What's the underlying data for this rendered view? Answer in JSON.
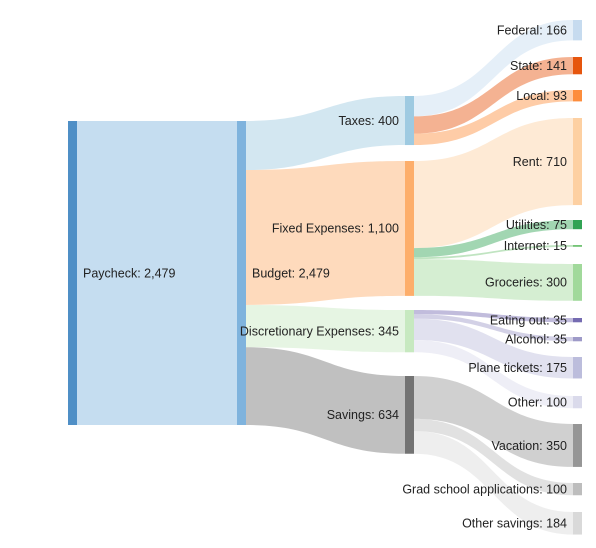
{
  "chart_data": {
    "type": "sankey",
    "nodes": [
      {
        "id": "paycheck",
        "name": "Paycheck",
        "value": 2479,
        "label": "Paycheck: 2,479",
        "color": "#4f8fc6"
      },
      {
        "id": "budget",
        "name": "Budget",
        "value": 2479,
        "label": "Budget: 2,479",
        "color": "#7fb3dd"
      },
      {
        "id": "taxes",
        "name": "Taxes",
        "value": 400,
        "label": "Taxes: 400",
        "color": "#9ecae1"
      },
      {
        "id": "fixed",
        "name": "Fixed Expenses",
        "value": 1100,
        "label": "Fixed Expenses: 1,100",
        "color": "#fdae6b"
      },
      {
        "id": "disc",
        "name": "Discretionary Expenses",
        "value": 345,
        "label": "Discretionary Expenses: 345",
        "color": "#c7e9c0"
      },
      {
        "id": "savings",
        "name": "Savings",
        "value": 634,
        "label": "Savings: 634",
        "color": "#737373"
      },
      {
        "id": "federal",
        "name": "Federal",
        "value": 166,
        "label": "Federal: 166",
        "color": "#c6dbef"
      },
      {
        "id": "state",
        "name": "State",
        "value": 141,
        "label": "State: 141",
        "color": "#e6550d"
      },
      {
        "id": "local",
        "name": "Local",
        "value": 93,
        "label": "Local: 93",
        "color": "#fd8d3c"
      },
      {
        "id": "rent",
        "name": "Rent",
        "value": 710,
        "label": "Rent: 710",
        "color": "#fdd0a2"
      },
      {
        "id": "utilities",
        "name": "Utilities",
        "value": 75,
        "label": "Utilities: 75",
        "color": "#31a354"
      },
      {
        "id": "internet",
        "name": "Internet",
        "value": 15,
        "label": "Internet: 15",
        "color": "#74c476"
      },
      {
        "id": "groceries",
        "name": "Groceries",
        "value": 300,
        "label": "Groceries: 300",
        "color": "#a1d99b"
      },
      {
        "id": "eatingout",
        "name": "Eating out",
        "value": 35,
        "label": "Eating out: 35",
        "color": "#756bb1"
      },
      {
        "id": "alcohol",
        "name": "Alcohol",
        "value": 35,
        "label": "Alcohol: 35",
        "color": "#9e9ac8"
      },
      {
        "id": "plane",
        "name": "Plane tickets",
        "value": 175,
        "label": "Plane tickets: 175",
        "color": "#bcbddc"
      },
      {
        "id": "other",
        "name": "Other",
        "value": 100,
        "label": "Other: 100",
        "color": "#dadaeb"
      },
      {
        "id": "vacation",
        "name": "Vacation",
        "value": 350,
        "label": "Vacation: 350",
        "color": "#969696"
      },
      {
        "id": "grad",
        "name": "Grad school applications",
        "value": 100,
        "label": "Grad school applications: 100",
        "color": "#bdbdbd"
      },
      {
        "id": "othersav",
        "name": "Other savings",
        "value": 184,
        "label": "Other savings: 184",
        "color": "#d9d9d9"
      }
    ],
    "links": [
      {
        "source": "paycheck",
        "target": "budget",
        "value": 2479
      },
      {
        "source": "budget",
        "target": "taxes",
        "value": 400
      },
      {
        "source": "budget",
        "target": "fixed",
        "value": 1100
      },
      {
        "source": "budget",
        "target": "disc",
        "value": 345
      },
      {
        "source": "budget",
        "target": "savings",
        "value": 634
      },
      {
        "source": "taxes",
        "target": "federal",
        "value": 166
      },
      {
        "source": "taxes",
        "target": "state",
        "value": 141
      },
      {
        "source": "taxes",
        "target": "local",
        "value": 93
      },
      {
        "source": "fixed",
        "target": "rent",
        "value": 710
      },
      {
        "source": "fixed",
        "target": "utilities",
        "value": 75
      },
      {
        "source": "fixed",
        "target": "internet",
        "value": 15
      },
      {
        "source": "fixed",
        "target": "groceries",
        "value": 300
      },
      {
        "source": "disc",
        "target": "eatingout",
        "value": 35
      },
      {
        "source": "disc",
        "target": "alcohol",
        "value": 35
      },
      {
        "source": "disc",
        "target": "plane",
        "value": 175
      },
      {
        "source": "disc",
        "target": "other",
        "value": 100
      },
      {
        "source": "savings",
        "target": "vacation",
        "value": 350
      },
      {
        "source": "savings",
        "target": "grad",
        "value": 100
      },
      {
        "source": "savings",
        "target": "othersav",
        "value": 184
      }
    ]
  }
}
